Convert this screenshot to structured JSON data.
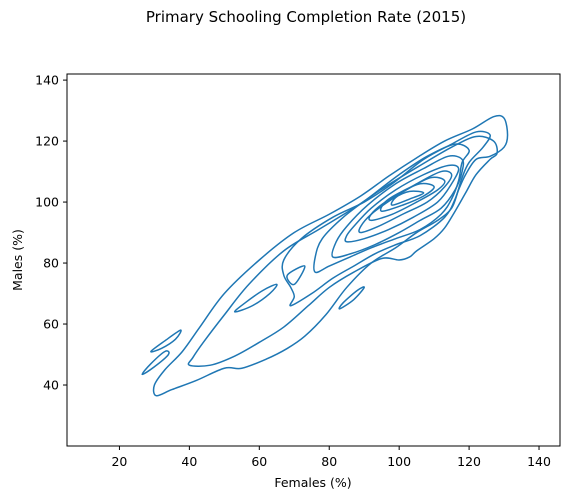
{
  "chart_data": {
    "type": "contour",
    "title": "Primary Schooling Completion Rate (2015)",
    "xlabel": "Females (%)",
    "ylabel": "Males (%)",
    "xlim": [
      5,
      146
    ],
    "ylim": [
      20,
      142
    ],
    "x_ticks": [
      20,
      40,
      60,
      80,
      100,
      120,
      140
    ],
    "y_ticks": [
      40,
      60,
      80,
      100,
      120,
      140
    ],
    "grid": false,
    "line_color": "#1f77b4",
    "contours": [
      {
        "name": "outer",
        "points": [
          [
            30.5,
            36.5
          ],
          [
            35,
            38.5
          ],
          [
            42,
            41.5
          ],
          [
            50,
            45.5
          ],
          [
            55,
            45.5
          ],
          [
            62,
            48.5
          ],
          [
            68,
            52
          ],
          [
            73,
            56
          ],
          [
            79,
            63
          ],
          [
            85,
            72
          ],
          [
            92,
            80
          ],
          [
            99,
            85
          ],
          [
            105,
            90
          ],
          [
            111,
            94
          ],
          [
            115,
            98
          ],
          [
            117,
            104
          ],
          [
            119,
            109
          ],
          [
            122,
            114
          ],
          [
            126,
            115
          ],
          [
            130,
            118
          ],
          [
            131,
            122
          ],
          [
            130,
            127.5
          ],
          [
            127,
            128
          ],
          [
            121,
            124
          ],
          [
            113,
            120
          ],
          [
            105,
            114.5
          ],
          [
            97,
            108.5
          ],
          [
            89,
            102
          ],
          [
            80,
            96
          ],
          [
            70,
            90
          ],
          [
            60,
            81
          ],
          [
            50,
            70
          ],
          [
            43,
            59
          ],
          [
            38,
            51
          ],
          [
            33,
            45
          ],
          [
            30,
            40
          ],
          [
            30.5,
            36.5
          ]
        ]
      },
      {
        "name": "level-2",
        "points": [
          [
            40,
            46.5
          ],
          [
            46,
            46.5
          ],
          [
            53,
            49.5
          ],
          [
            60,
            54
          ],
          [
            67,
            59
          ],
          [
            74,
            66
          ],
          [
            80,
            72
          ],
          [
            87,
            77
          ],
          [
            95,
            81.5
          ],
          [
            100,
            81
          ],
          [
            103,
            82
          ],
          [
            105,
            84
          ],
          [
            110,
            88
          ],
          [
            113,
            91.5
          ],
          [
            116,
            97
          ],
          [
            119,
            103
          ],
          [
            122,
            109
          ],
          [
            126,
            114
          ],
          [
            128,
            116
          ],
          [
            127,
            120
          ],
          [
            122,
            121.5
          ],
          [
            115,
            118
          ],
          [
            106,
            112
          ],
          [
            96,
            105
          ],
          [
            87,
            98
          ],
          [
            77,
            91
          ],
          [
            67,
            84
          ],
          [
            57,
            73
          ],
          [
            50,
            63
          ],
          [
            44,
            54
          ],
          [
            41,
            49
          ],
          [
            40,
            46.5
          ]
        ]
      },
      {
        "name": "level-3",
        "points": [
          [
            69,
            66
          ],
          [
            75,
            70
          ],
          [
            81,
            75
          ],
          [
            87,
            79
          ],
          [
            93,
            83
          ],
          [
            99,
            86
          ],
          [
            106,
            89
          ],
          [
            113,
            95
          ],
          [
            116,
            101
          ],
          [
            118,
            108
          ],
          [
            120,
            113
          ],
          [
            124,
            118
          ],
          [
            126,
            122
          ],
          [
            122,
            123
          ],
          [
            115,
            119
          ],
          [
            107,
            114
          ],
          [
            98,
            106
          ],
          [
            90,
            100
          ],
          [
            81,
            95
          ],
          [
            72,
            88
          ],
          [
            67,
            81
          ],
          [
            67,
            76
          ],
          [
            69,
            72
          ],
          [
            70,
            69
          ],
          [
            69,
            66
          ]
        ]
      },
      {
        "name": "level-4",
        "points": [
          [
            76,
            77
          ],
          [
            80,
            79
          ],
          [
            86,
            82
          ],
          [
            92,
            85
          ],
          [
            99,
            88
          ],
          [
            106,
            91
          ],
          [
            112,
            96
          ],
          [
            115,
            101
          ],
          [
            117,
            107
          ],
          [
            118,
            113
          ],
          [
            120,
            117
          ],
          [
            116,
            119
          ],
          [
            108,
            115
          ],
          [
            100,
            109
          ],
          [
            92,
            102
          ],
          [
            84,
            95
          ],
          [
            78,
            88
          ],
          [
            76,
            82
          ],
          [
            76,
            77
          ]
        ]
      },
      {
        "name": "level-5",
        "points": [
          [
            81,
            82
          ],
          [
            86,
            83
          ],
          [
            93,
            86
          ],
          [
            100,
            90
          ],
          [
            106,
            94
          ],
          [
            112,
            98
          ],
          [
            116,
            104
          ],
          [
            118,
            110
          ],
          [
            118,
            114
          ],
          [
            114,
            115
          ],
          [
            107,
            111
          ],
          [
            99,
            106
          ],
          [
            91,
            99
          ],
          [
            85,
            92
          ],
          [
            82,
            87
          ],
          [
            81,
            82
          ]
        ]
      },
      {
        "name": "level-6",
        "points": [
          [
            85,
            87
          ],
          [
            90,
            88
          ],
          [
            97,
            91
          ],
          [
            104,
            95
          ],
          [
            111,
            100
          ],
          [
            115,
            106
          ],
          [
            117,
            111
          ],
          [
            114,
            112
          ],
          [
            107,
            109
          ],
          [
            99,
            104
          ],
          [
            92,
            98
          ],
          [
            87,
            92
          ],
          [
            85,
            89
          ],
          [
            85,
            87
          ]
        ]
      },
      {
        "name": "level-7",
        "points": [
          [
            89,
            90
          ],
          [
            94,
            92
          ],
          [
            101,
            96
          ],
          [
            108,
            100
          ],
          [
            113,
            105
          ],
          [
            115,
            109
          ],
          [
            112,
            110
          ],
          [
            105,
            106
          ],
          [
            98,
            101
          ],
          [
            92,
            96
          ],
          [
            89,
            92
          ],
          [
            89,
            90
          ]
        ]
      },
      {
        "name": "level-8",
        "points": [
          [
            92,
            94
          ],
          [
            98,
            96
          ],
          [
            105,
            100
          ],
          [
            111,
            104
          ],
          [
            113,
            107
          ],
          [
            109,
            108
          ],
          [
            102,
            104
          ],
          [
            96,
            100
          ],
          [
            92,
            96
          ],
          [
            92,
            94
          ]
        ]
      },
      {
        "name": "level-9",
        "points": [
          [
            95,
            97
          ],
          [
            101,
            99
          ],
          [
            107,
            102
          ],
          [
            110,
            105
          ],
          [
            106,
            106
          ],
          [
            100,
            103
          ],
          [
            96,
            100
          ],
          [
            95,
            97
          ]
        ]
      },
      {
        "name": "level-10",
        "points": [
          [
            98,
            99
          ],
          [
            103,
            101
          ],
          [
            107,
            103
          ],
          [
            103,
            103.5
          ],
          [
            99,
            101.5
          ],
          [
            98,
            99
          ]
        ]
      },
      {
        "name": "island-60",
        "points": [
          [
            53,
            64
          ],
          [
            58,
            66
          ],
          [
            63,
            70
          ],
          [
            65,
            73
          ],
          [
            61,
            71
          ],
          [
            56,
            67
          ],
          [
            53,
            64
          ]
        ]
      },
      {
        "name": "island-70",
        "points": [
          [
            68,
            76
          ],
          [
            73,
            79
          ],
          [
            70,
            73
          ],
          [
            68,
            76
          ]
        ]
      },
      {
        "name": "island-small-a",
        "points": [
          [
            29,
            51
          ],
          [
            33,
            54.5
          ],
          [
            37.5,
            58
          ],
          [
            36,
            55
          ],
          [
            32,
            52
          ],
          [
            29,
            51
          ]
        ]
      },
      {
        "name": "island-small-b",
        "points": [
          [
            26.5,
            43.5
          ],
          [
            30,
            46
          ],
          [
            34,
            50
          ],
          [
            33,
            51
          ],
          [
            29,
            47
          ],
          [
            26.5,
            43.5
          ]
        ]
      },
      {
        "name": "island-small-c",
        "points": [
          [
            83,
            65
          ],
          [
            87,
            68
          ],
          [
            90,
            72
          ],
          [
            88,
            71
          ],
          [
            84,
            67
          ],
          [
            83,
            65
          ]
        ]
      }
    ]
  }
}
